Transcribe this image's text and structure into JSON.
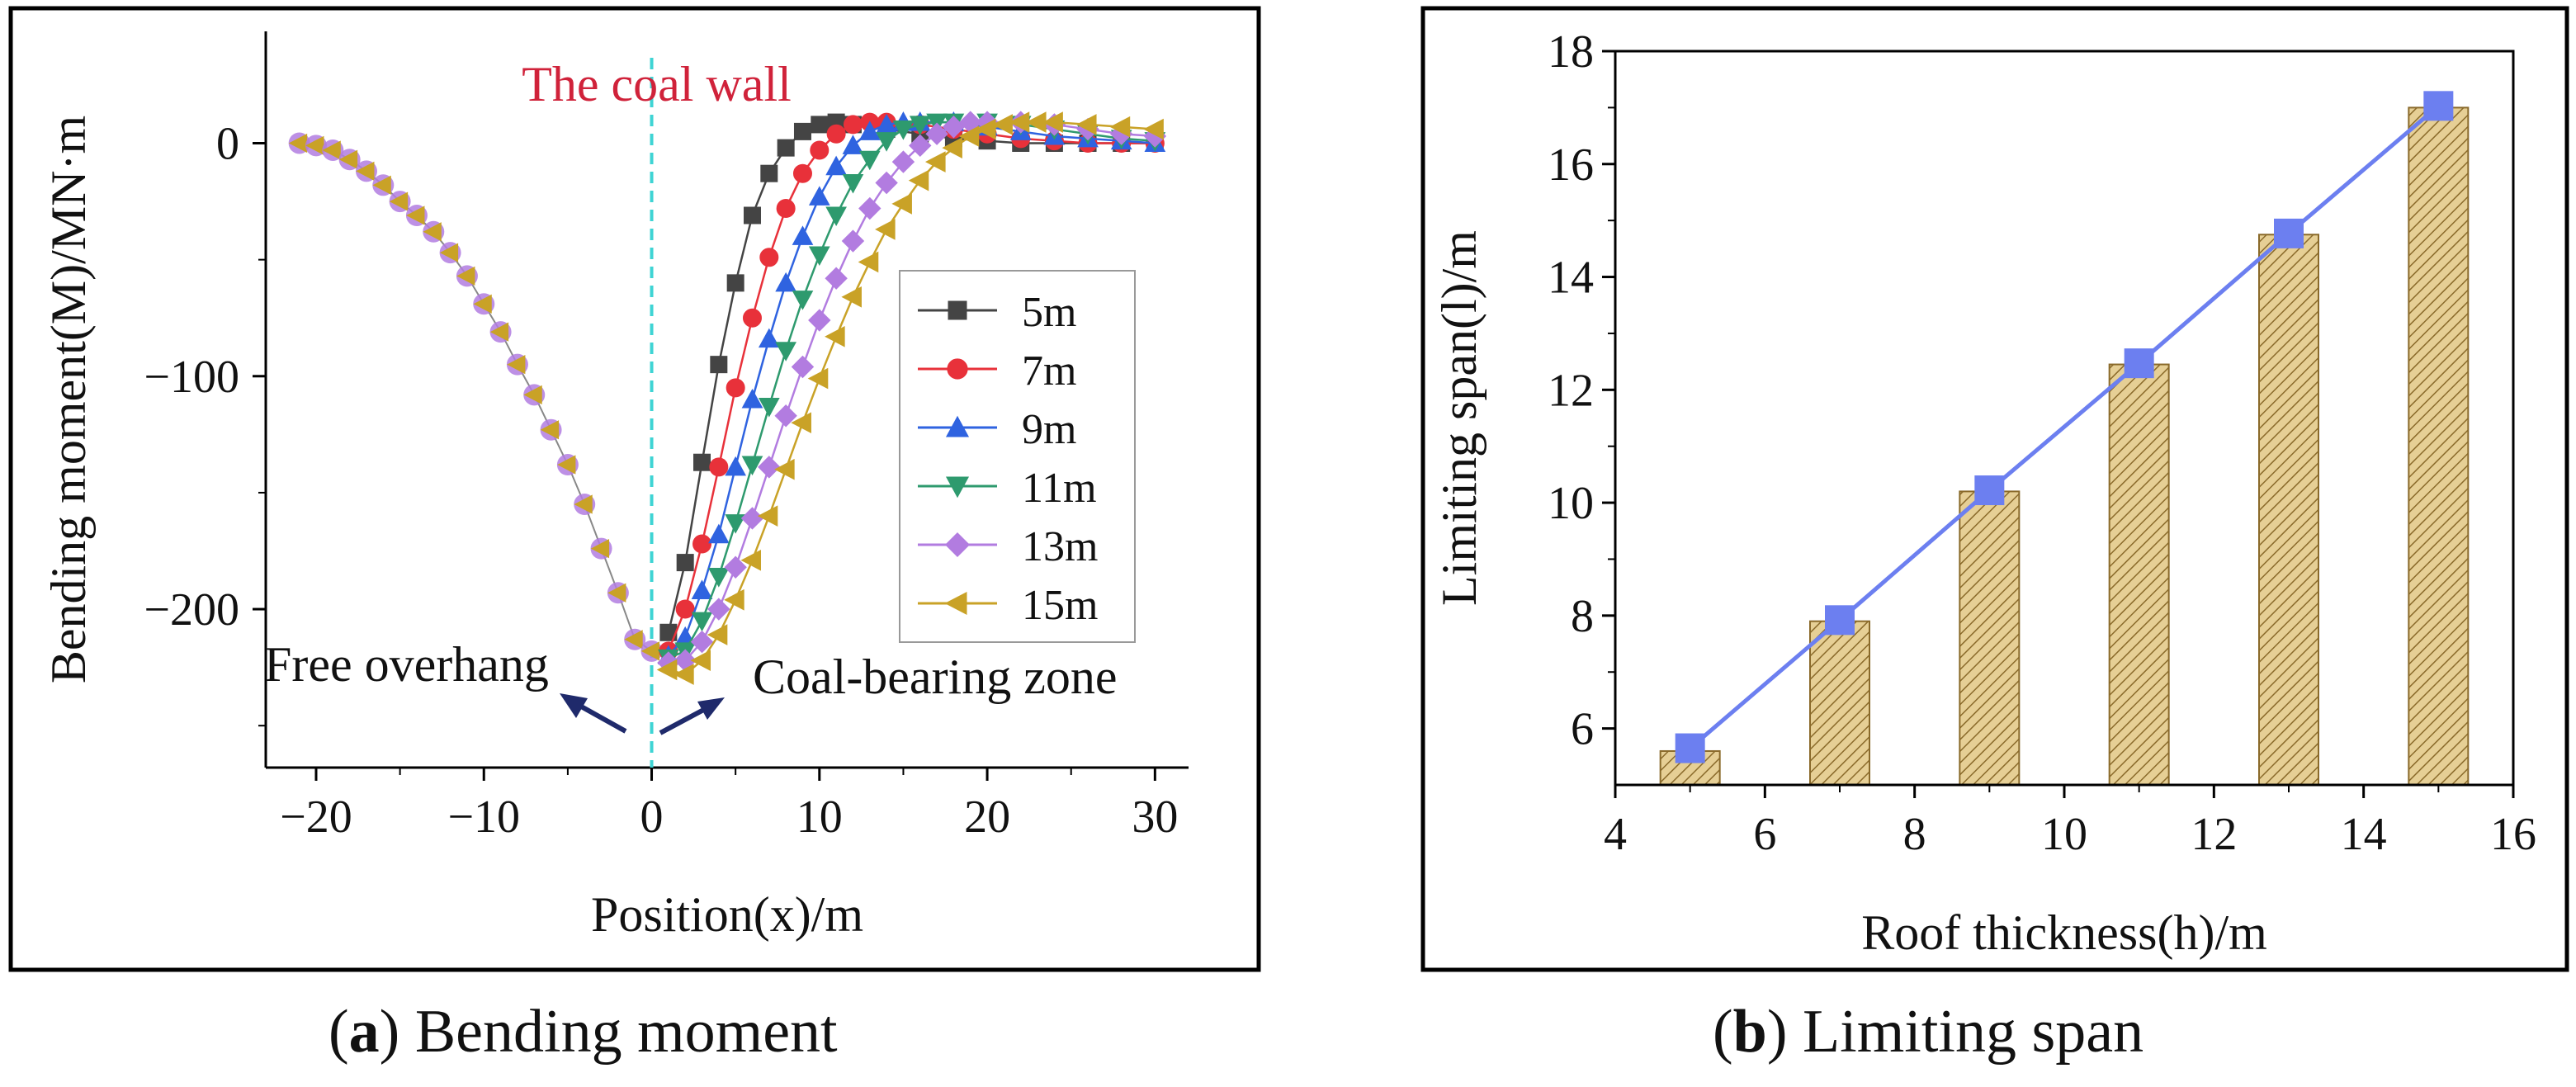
{
  "chart_data": [
    {
      "type": "line",
      "title": "",
      "xlabel": "Position(x)/m",
      "ylabel": "Bending moment(M)/MN·m",
      "xlim": [
        -23,
        32
      ],
      "ylim": [
        -268,
        48
      ],
      "xticks": [
        -20,
        -10,
        0,
        10,
        20,
        30
      ],
      "yticks": [
        0,
        -100,
        -200
      ],
      "xtick_labels": [
        "−20",
        "−10",
        "0",
        "10",
        "20",
        "30"
      ],
      "ytick_labels": [
        "0",
        "−100",
        "−200"
      ],
      "grid": false,
      "legend_position": "right",
      "annotations": {
        "coal_wall": "The coal wall",
        "free_overhang": "Free overhang",
        "coal_bearing_zone": "Coal-bearing zone"
      },
      "overhang_x": [
        -21,
        -20,
        -19,
        -18,
        -17,
        -16,
        -15,
        -14,
        -13,
        -12,
        -11,
        -10,
        -9,
        -8,
        -7,
        -6,
        -5,
        -4,
        -3,
        -2,
        -1,
        0
      ],
      "overhang_y": [
        0,
        -1,
        -3,
        -7,
        -12,
        -18,
        -25,
        -31,
        -38,
        -47,
        -57,
        -69,
        -81,
        -95,
        -108,
        -123,
        -138,
        -155,
        -174,
        -193,
        -213,
        -218
      ],
      "series": [
        {
          "name": "5m",
          "color": "#444444",
          "marker": "square",
          "x": [
            1,
            2,
            3,
            4,
            5,
            6,
            7,
            8,
            9,
            10,
            11,
            12,
            14,
            16,
            18,
            20,
            22,
            24,
            26,
            28,
            30
          ],
          "y": [
            -210,
            -180,
            -137,
            -95,
            -60,
            -31,
            -13,
            -2,
            5,
            8,
            9,
            8,
            6,
            4,
            2,
            1,
            0,
            0,
            0,
            0,
            0
          ]
        },
        {
          "name": "7m",
          "color": "#e8313a",
          "marker": "circle",
          "x": [
            1,
            2,
            3,
            4,
            5,
            6,
            7,
            8,
            9,
            10,
            11,
            12,
            13,
            14,
            16,
            18,
            20,
            22,
            24,
            26,
            28,
            30
          ],
          "y": [
            -218,
            -200,
            -172,
            -139,
            -105,
            -75,
            -49,
            -28,
            -13,
            -3,
            4,
            8,
            9,
            9,
            8,
            6,
            4,
            2,
            1,
            0,
            0,
            0
          ]
        },
        {
          "name": "9m",
          "color": "#2f63e0",
          "marker": "triangle-up",
          "x": [
            1,
            2,
            3,
            4,
            5,
            6,
            7,
            8,
            9,
            10,
            11,
            12,
            13,
            14,
            15,
            16,
            18,
            20,
            22,
            24,
            26,
            28,
            30
          ],
          "y": [
            -220,
            -212,
            -192,
            -168,
            -139,
            -110,
            -84,
            -60,
            -40,
            -23,
            -10,
            -1,
            5,
            8,
            9,
            9,
            9,
            7,
            5,
            3,
            2,
            1,
            0
          ]
        },
        {
          "name": "11m",
          "color": "#2e9a6e",
          "marker": "triangle-down",
          "x": [
            1,
            2,
            3,
            4,
            5,
            6,
            7,
            8,
            9,
            10,
            11,
            12,
            13,
            14,
            15,
            16,
            17,
            18,
            20,
            22,
            24,
            26,
            28,
            30
          ],
          "y": [
            -221,
            -218,
            -205,
            -186,
            -163,
            -138,
            -113,
            -89,
            -67,
            -48,
            -31,
            -17,
            -7,
            1,
            6,
            8,
            9,
            9,
            9,
            8,
            6,
            4,
            2,
            1
          ]
        },
        {
          "name": "13m",
          "color": "#b27ce0",
          "marker": "diamond",
          "x": [
            1,
            2,
            3,
            4,
            5,
            6,
            7,
            8,
            9,
            10,
            11,
            12,
            13,
            14,
            15,
            16,
            17,
            18,
            19,
            20,
            22,
            24,
            26,
            28,
            30
          ],
          "y": [
            -223,
            -222,
            -214,
            -200,
            -182,
            -161,
            -139,
            -117,
            -96,
            -76,
            -58,
            -42,
            -28,
            -17,
            -8,
            -1,
            4,
            7,
            9,
            9,
            9,
            8,
            6,
            4,
            3
          ]
        },
        {
          "name": "15m",
          "color": "#c9a227",
          "marker": "triangle-left",
          "x": [
            1,
            2,
            3,
            4,
            5,
            6,
            7,
            8,
            9,
            10,
            11,
            12,
            13,
            14,
            15,
            16,
            17,
            18,
            19,
            20,
            21,
            22,
            23,
            24,
            26,
            28,
            30
          ],
          "y": [
            -226,
            -228,
            -222,
            -211,
            -196,
            -179,
            -160,
            -140,
            -120,
            -101,
            -83,
            -66,
            -51,
            -37,
            -26,
            -16,
            -8,
            -2,
            3,
            6,
            8,
            9,
            9,
            9,
            8,
            7,
            6
          ]
        }
      ]
    },
    {
      "type": "bar",
      "title": "",
      "xlabel": "Roof thickness(h)/m",
      "ylabel": "Limiting span(l)/m",
      "xlim": [
        4,
        16
      ],
      "ylim": [
        5,
        18
      ],
      "xticks": [
        4,
        6,
        8,
        10,
        12,
        14,
        16
      ],
      "yticks": [
        6,
        8,
        10,
        12,
        14,
        16,
        18
      ],
      "grid": false,
      "x": [
        5,
        7,
        9,
        11,
        13,
        15
      ],
      "values": [
        5.6,
        7.9,
        10.2,
        12.45,
        14.75,
        17.0
      ],
      "line_series": {
        "x": [
          5,
          7,
          9,
          11,
          13,
          15
        ],
        "y": [
          5.65,
          7.92,
          10.22,
          12.47,
          14.77,
          17.03
        ]
      },
      "bar_color": "#c9a85a",
      "line_color": "#6c7ff0"
    }
  ],
  "captions": {
    "a_letter": "a",
    "a_text": " Bending moment",
    "b_letter": "b",
    "b_text": " Limiting span"
  }
}
